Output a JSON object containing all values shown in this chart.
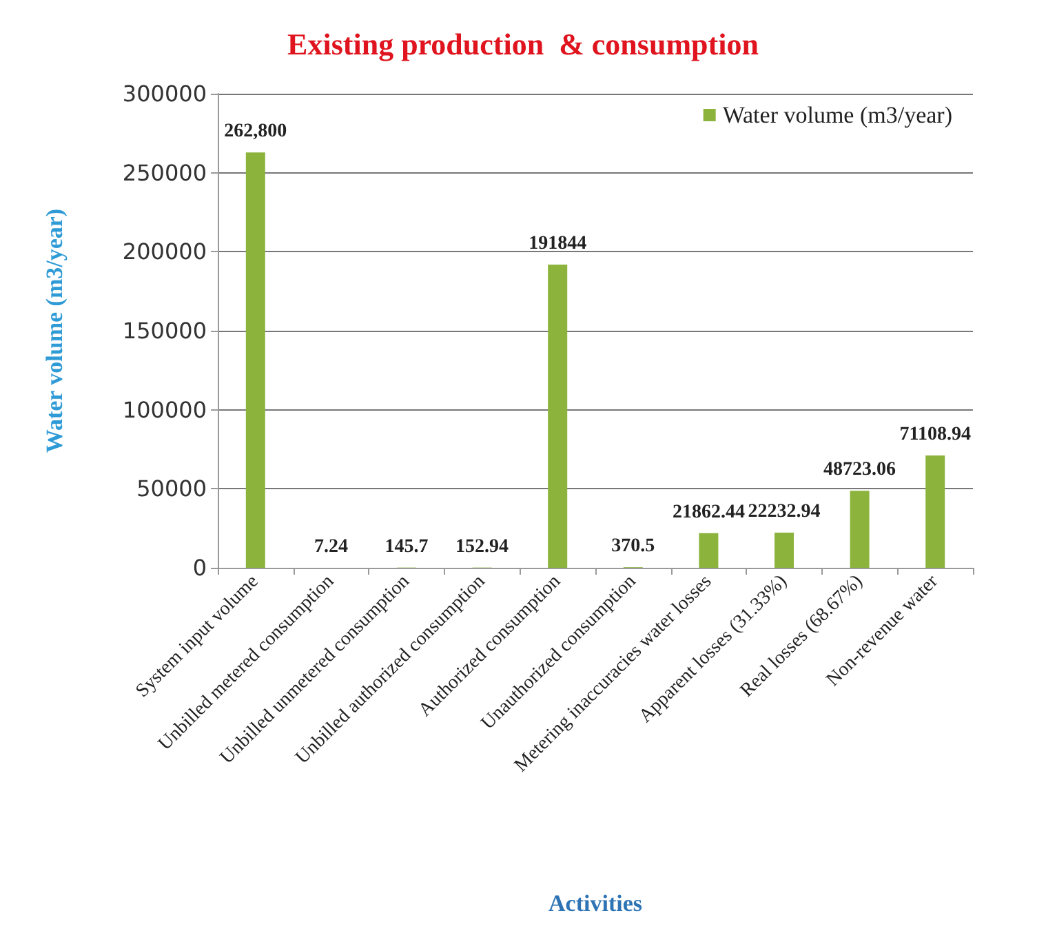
{
  "chart_data": {
    "type": "bar",
    "title": "Existing production  & consumption",
    "xlabel": "Activities",
    "ylabel": "Water volume (m3/year)",
    "categories": [
      "System input volume",
      "Unbilled metered consumption",
      "Unbilled unmetered consumption",
      "Unbilled authorized consumption",
      "Authorized consumption",
      "Unauthorized consumption",
      "Metering inaccuracies water losses",
      "Apparent losses (31.33%)",
      "Real losses (68.67%)",
      "Non-revenue water"
    ],
    "series": [
      {
        "name": "Water volume (m3/year)",
        "color": "#8cb33c",
        "values": [
          262800,
          7.24,
          145.7,
          152.94,
          191844,
          370.5,
          21862.44,
          22232.94,
          48723.06,
          71108.94
        ],
        "value_labels": [
          "262,800",
          "7.24",
          "145.7",
          "152.94",
          "191844",
          "370.5",
          "21862.44",
          "22232.94",
          "48723.06",
          "71108.94"
        ]
      }
    ],
    "ylim": [
      0,
      300000
    ],
    "yticks": [
      0,
      50000,
      100000,
      150000,
      200000,
      250000,
      300000
    ],
    "grid": "y",
    "legend": "top right"
  }
}
